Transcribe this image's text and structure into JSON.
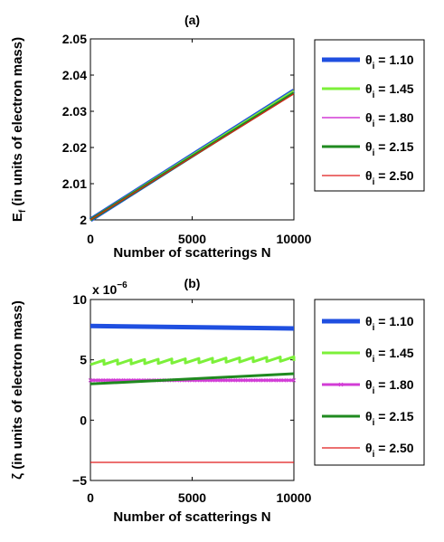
{
  "chart_data": [
    {
      "type": "line",
      "panel_label": "(a)",
      "xlabel": "Number of scatterings N",
      "ylabel_main": "E",
      "ylabel_sub": "f",
      "ylabel_rest": " (in units of electron mass)",
      "xlim": [
        0,
        10000
      ],
      "ylim": [
        2,
        2.05
      ],
      "xticks": [
        0,
        5000,
        10000
      ],
      "yticks": [
        2,
        2.01,
        2.02,
        2.03,
        2.04,
        2.05
      ],
      "ytick_labels": [
        "2",
        "2.01",
        "2.02",
        "2.03",
        "2.04",
        "2.05"
      ],
      "grid": false,
      "legend_position": "outside-right",
      "series": [
        {
          "name_main": "θ",
          "name_sub": "i",
          "name_rest": " = 1.10",
          "color": "#1f4fe0",
          "width": 5,
          "x": [
            0,
            10000
          ],
          "y": [
            2.0,
            2.0357
          ]
        },
        {
          "name_main": "θ",
          "name_sub": "i",
          "name_rest": " = 1.45",
          "color": "#7cf03a",
          "width": 3,
          "x": [
            0,
            10000
          ],
          "y": [
            2.0,
            2.0356
          ]
        },
        {
          "name_main": "θ",
          "name_sub": "i",
          "name_rest": " = 1.80",
          "color": "#d23cd6",
          "width": 1.5,
          "x": [
            0,
            10000
          ],
          "y": [
            2.0,
            2.0353
          ]
        },
        {
          "name_main": "θ",
          "name_sub": "i",
          "name_rest": " = 2.15",
          "color": "#1f8a1f",
          "width": 3,
          "x": [
            0,
            10000
          ],
          "y": [
            2.0,
            2.0351
          ]
        },
        {
          "name_main": "θ",
          "name_sub": "i",
          "name_rest": " = 2.50",
          "color": "#e01b1b",
          "width": 1.2,
          "x": [
            0,
            10000
          ],
          "y": [
            2.0,
            2.0348
          ]
        }
      ]
    },
    {
      "type": "line",
      "panel_label": "(b)",
      "xlabel": "Number of scatterings N",
      "ylabel_main": "ζ",
      "ylabel_rest": " (in units of electron mass)",
      "multiplier_text": "x 10",
      "multiplier_exp": "−6",
      "xlim": [
        0,
        10000
      ],
      "ylim": [
        -5,
        10
      ],
      "xticks": [
        0,
        5000,
        10000
      ],
      "yticks": [
        -5,
        0,
        5,
        10
      ],
      "ytick_labels": [
        "−5",
        "0",
        "5",
        "10"
      ],
      "grid": false,
      "legend_position": "outside-right",
      "series": [
        {
          "name_main": "θ",
          "name_sub": "i",
          "name_rest": " = 1.10",
          "color": "#1f4fe0",
          "width": 5,
          "marker": "none",
          "x": [
            0,
            10000
          ],
          "y": [
            7.8,
            7.6
          ]
        },
        {
          "name_main": "θ",
          "name_sub": "i",
          "name_rest": " = 1.45",
          "color": "#7cf03a",
          "width": 3,
          "marker": "none",
          "sawtooth": true,
          "x": [
            0,
            10000
          ],
          "y": [
            4.6,
            4.9
          ]
        },
        {
          "name_main": "θ",
          "name_sub": "i",
          "name_rest": " = 1.80",
          "color": "#d23cd6",
          "width": 3,
          "marker": "x",
          "x": [
            0,
            10000
          ],
          "y": [
            3.3,
            3.3
          ]
        },
        {
          "name_main": "θ",
          "name_sub": "i",
          "name_rest": " = 2.15",
          "color": "#1f8a1f",
          "width": 3,
          "marker": "none",
          "x": [
            0,
            10000
          ],
          "y": [
            3.0,
            3.85
          ]
        },
        {
          "name_main": "θ",
          "name_sub": "i",
          "name_rest": " = 2.50",
          "color": "#e01b1b",
          "width": 1.2,
          "marker": "none",
          "x": [
            0,
            10000
          ],
          "y": [
            -3.5,
            -3.5
          ]
        }
      ]
    }
  ]
}
